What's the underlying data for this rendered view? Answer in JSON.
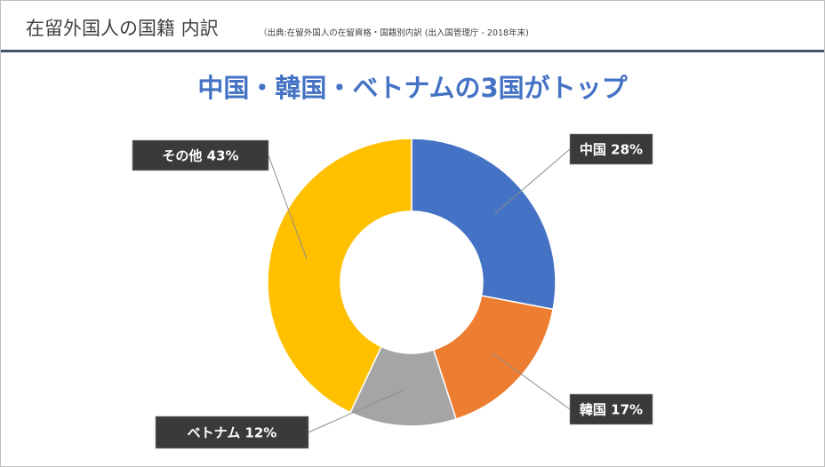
{
  "header": {
    "title": "在留外国人の国籍 内訳",
    "source": "（出典:在留外国人の在留資格・国籍別内訳 (出入国管理庁 - 2018年末)"
  },
  "headline": "中国・韓国・ベトナムの3国がトップ",
  "chart_data": {
    "type": "pie",
    "variant": "donut",
    "categories": [
      "中国",
      "韓国",
      "ベトナム",
      "その他"
    ],
    "values": [
      28,
      17,
      12,
      43
    ],
    "unit": "%",
    "labels": [
      "中国 28%",
      "韓国 17%",
      "ベトナム 12%",
      "その他 43%"
    ],
    "colors": [
      "#4472c4",
      "#ed7d31",
      "#a5a5a5",
      "#ffc000"
    ],
    "start_angle": "12 o'clock",
    "direction": "clockwise",
    "legend": "none"
  }
}
